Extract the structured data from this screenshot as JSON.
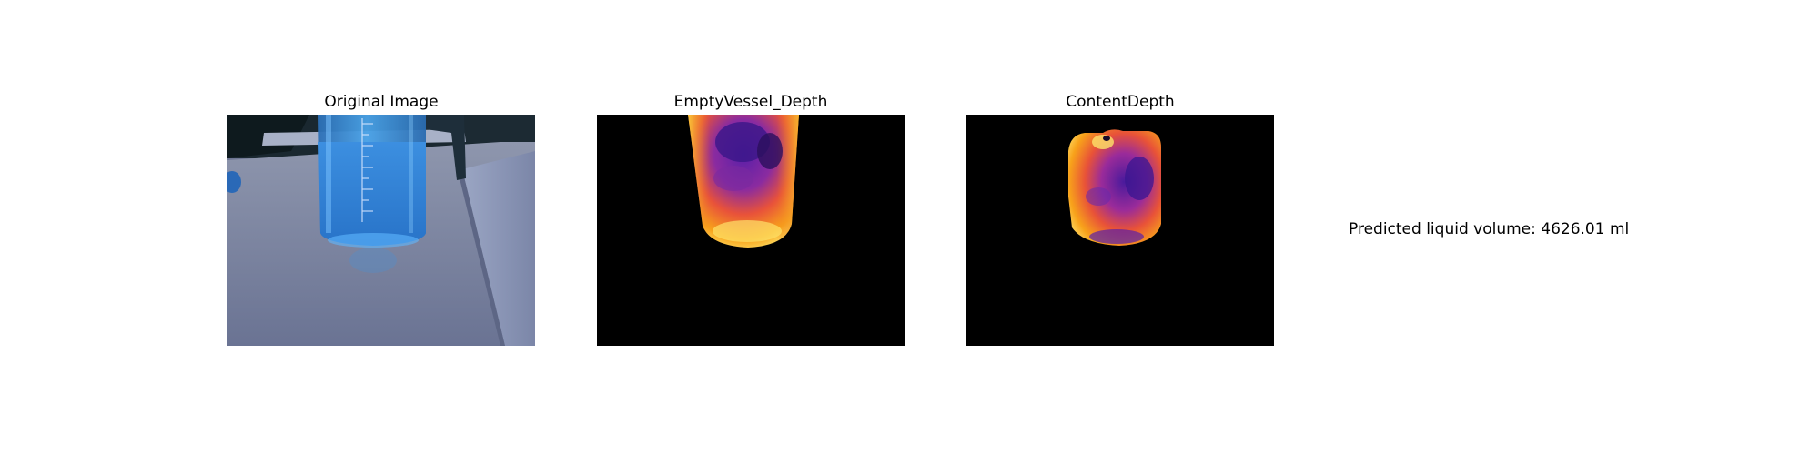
{
  "figure": {
    "panels": [
      {
        "title": "Original Image",
        "content": "photo of a measuring jug containing blue liquid on a table"
      },
      {
        "title": "EmptyVessel_Depth",
        "content": "depth map of empty vessel, inferno colormap on black"
      },
      {
        "title": "ContentDepth",
        "content": "depth map of liquid content, inferno colormap on black"
      }
    ],
    "prediction_text": "Predicted liquid volume: 4626.01 ml"
  }
}
